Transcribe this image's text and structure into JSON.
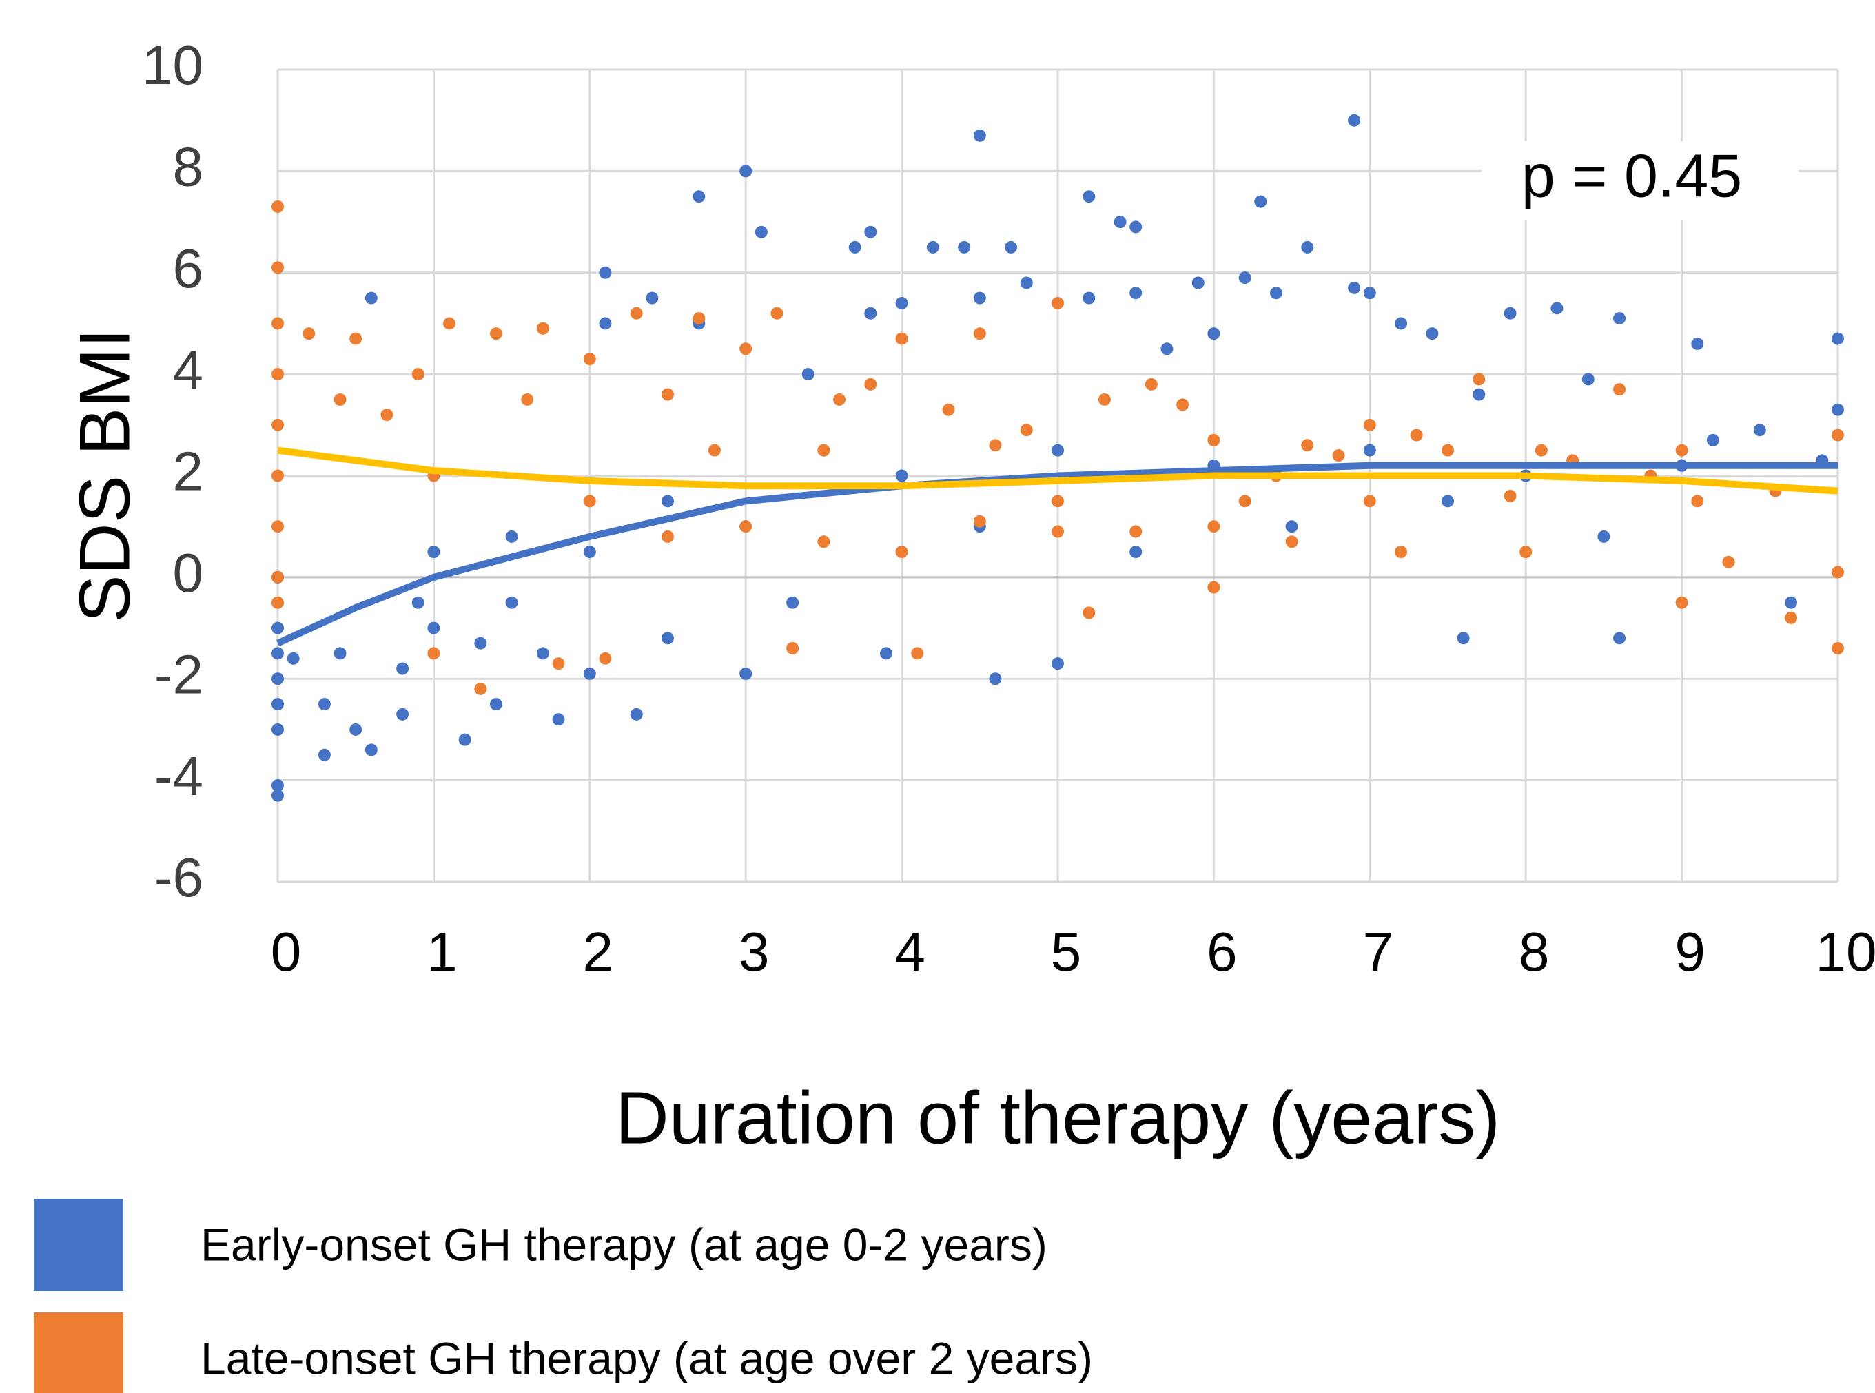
{
  "chart_data": {
    "type": "scatter",
    "xlabel": "Duration of therapy (years)",
    "ylabel": "SDS BMI",
    "annotation": "p = 0.45",
    "xlim": [
      0,
      10
    ],
    "xticks": [
      0,
      1,
      2,
      3,
      4,
      5,
      6,
      7,
      8,
      9,
      10
    ],
    "ylim": [
      -6,
      10
    ],
    "yticks": [
      -6,
      -4,
      -2,
      0,
      2,
      4,
      6,
      8,
      10
    ],
    "grid": true,
    "series": [
      {
        "name": "Early-onset GH therapy (at age 0-2 years)",
        "color": "#4472c4",
        "x": [
          0,
          0,
          0,
          0,
          0,
          0,
          0,
          0,
          0.1,
          0.3,
          0.3,
          0.4,
          0.5,
          0.6,
          0.6,
          0.8,
          0.8,
          0.9,
          1,
          1.2,
          1.3,
          1.4,
          1.5,
          1.7,
          1.8,
          2,
          2.1,
          2.1,
          2.3,
          2.4,
          2.5,
          2.7,
          2.7,
          3,
          3.1,
          3,
          3.3,
          3.4,
          3.7,
          3.8,
          3.8,
          3.9,
          4,
          4.2,
          4.4,
          4.5,
          4.5,
          4.6,
          4.7,
          4.8,
          5,
          5.2,
          5.2,
          5.4,
          5.5,
          5.5,
          5.7,
          5.9,
          6,
          6.2,
          6.3,
          6.4,
          6.6,
          6.9,
          6.9,
          7,
          7.2,
          7.4,
          7.6,
          7.7,
          7.9,
          8.2,
          8.4,
          8.6,
          8.6,
          9.1,
          9.2,
          9.5,
          9.7,
          10,
          10,
          9.9,
          4,
          3,
          2,
          5,
          6,
          7,
          8,
          9,
          5.5,
          6.5,
          7.5,
          8.5,
          4.5,
          1,
          1.5,
          2.5,
          3.5
        ],
        "values": [
          -4.3,
          -4.1,
          -3,
          -2.5,
          -2,
          -1.5,
          -1,
          0,
          -1.6,
          -3.5,
          -2.5,
          -1.5,
          -3,
          5.5,
          -3.4,
          -2.7,
          -1.8,
          -0.5,
          -1,
          -3.2,
          -1.3,
          -2.5,
          -0.5,
          -1.5,
          -2.8,
          -1.9,
          6,
          5,
          -2.7,
          5.5,
          -1.2,
          5,
          7.5,
          8,
          6.8,
          -1.9,
          -0.5,
          4,
          6.5,
          6.8,
          5.2,
          -1.5,
          5.4,
          6.5,
          6.5,
          8.7,
          5.5,
          -2,
          6.5,
          5.8,
          -1.7,
          5.5,
          7.5,
          7,
          5.6,
          6.9,
          4.5,
          5.8,
          4.8,
          5.9,
          7.4,
          5.6,
          6.5,
          9,
          5.7,
          5.6,
          5,
          4.8,
          -1.2,
          3.6,
          5.2,
          5.3,
          3.9,
          -1.2,
          5.1,
          4.6,
          2.7,
          2.9,
          -0.5,
          4.7,
          3.3,
          2.3,
          2,
          1,
          0.5,
          2.5,
          2.2,
          2.5,
          2,
          2.2,
          0.5,
          1,
          1.5,
          0.8,
          1,
          0.5,
          0.8,
          1.5,
          2.5
        ]
      },
      {
        "name": "Late-onset GH therapy  (at age over 2 years)",
        "color": "#ed7d31",
        "x": [
          0,
          0,
          0,
          0,
          0,
          0,
          0,
          0,
          0,
          0.2,
          0.4,
          0.5,
          0.7,
          0.9,
          1.1,
          1,
          1.3,
          1.4,
          1.6,
          1.7,
          1.8,
          2,
          2.1,
          2.3,
          2.5,
          2.7,
          2.8,
          3,
          3.2,
          3.3,
          3.5,
          3.6,
          3.8,
          4,
          4.1,
          4.3,
          4.5,
          4.6,
          4.8,
          5,
          5,
          5.2,
          5.3,
          5.6,
          5.8,
          6,
          6,
          6.2,
          6.4,
          6.6,
          6.8,
          7,
          7.2,
          7.3,
          7.5,
          7.7,
          7.9,
          8.1,
          8.3,
          8.6,
          8.8,
          9,
          9.1,
          9.3,
          9.6,
          9.7,
          10,
          10,
          10,
          3,
          4,
          5,
          6,
          7,
          8,
          9,
          2,
          1,
          2.5,
          3.5,
          4.5,
          5.5,
          6.5
        ],
        "values": [
          7.3,
          6.1,
          5,
          4,
          3,
          2,
          1,
          0,
          -0.5,
          4.8,
          3.5,
          4.7,
          3.2,
          4,
          5,
          -1.5,
          -2.2,
          4.8,
          3.5,
          4.9,
          -1.7,
          4.3,
          -1.6,
          5.2,
          3.6,
          5.1,
          2.5,
          4.5,
          5.2,
          -1.4,
          2.5,
          3.5,
          3.8,
          4.7,
          -1.5,
          3.3,
          4.8,
          2.6,
          2.9,
          5.4,
          0.9,
          -0.7,
          3.5,
          3.8,
          3.4,
          2.7,
          -0.2,
          1.5,
          2,
          2.6,
          2.4,
          3,
          0.5,
          2.8,
          2.5,
          3.9,
          1.6,
          2.5,
          2.3,
          3.7,
          2,
          -0.5,
          1.5,
          0.3,
          1.7,
          -0.8,
          2.8,
          -1.4,
          0.1,
          1,
          0.5,
          1.5,
          1,
          1.5,
          0.5,
          2.5,
          1.5,
          2,
          0.8,
          0.7,
          1.1,
          0.9,
          0.7
        ]
      }
    ],
    "trend_lines": [
      {
        "color": "#4472c4",
        "x": [
          0,
          0.5,
          1,
          1.5,
          2,
          3,
          4,
          5,
          6,
          7,
          8,
          9,
          10
        ],
        "values": [
          -1.3,
          -0.6,
          0,
          0.4,
          0.8,
          1.5,
          1.8,
          2,
          2.1,
          2.2,
          2.2,
          2.2,
          2.2
        ]
      },
      {
        "color": "#ffc000",
        "x": [
          0,
          0.5,
          1,
          1.5,
          2,
          3,
          4,
          5,
          6,
          7,
          8,
          9,
          10
        ],
        "values": [
          2.5,
          2.3,
          2.1,
          2,
          1.9,
          1.8,
          1.8,
          1.9,
          2,
          2,
          2,
          1.9,
          1.7
        ]
      }
    ]
  }
}
